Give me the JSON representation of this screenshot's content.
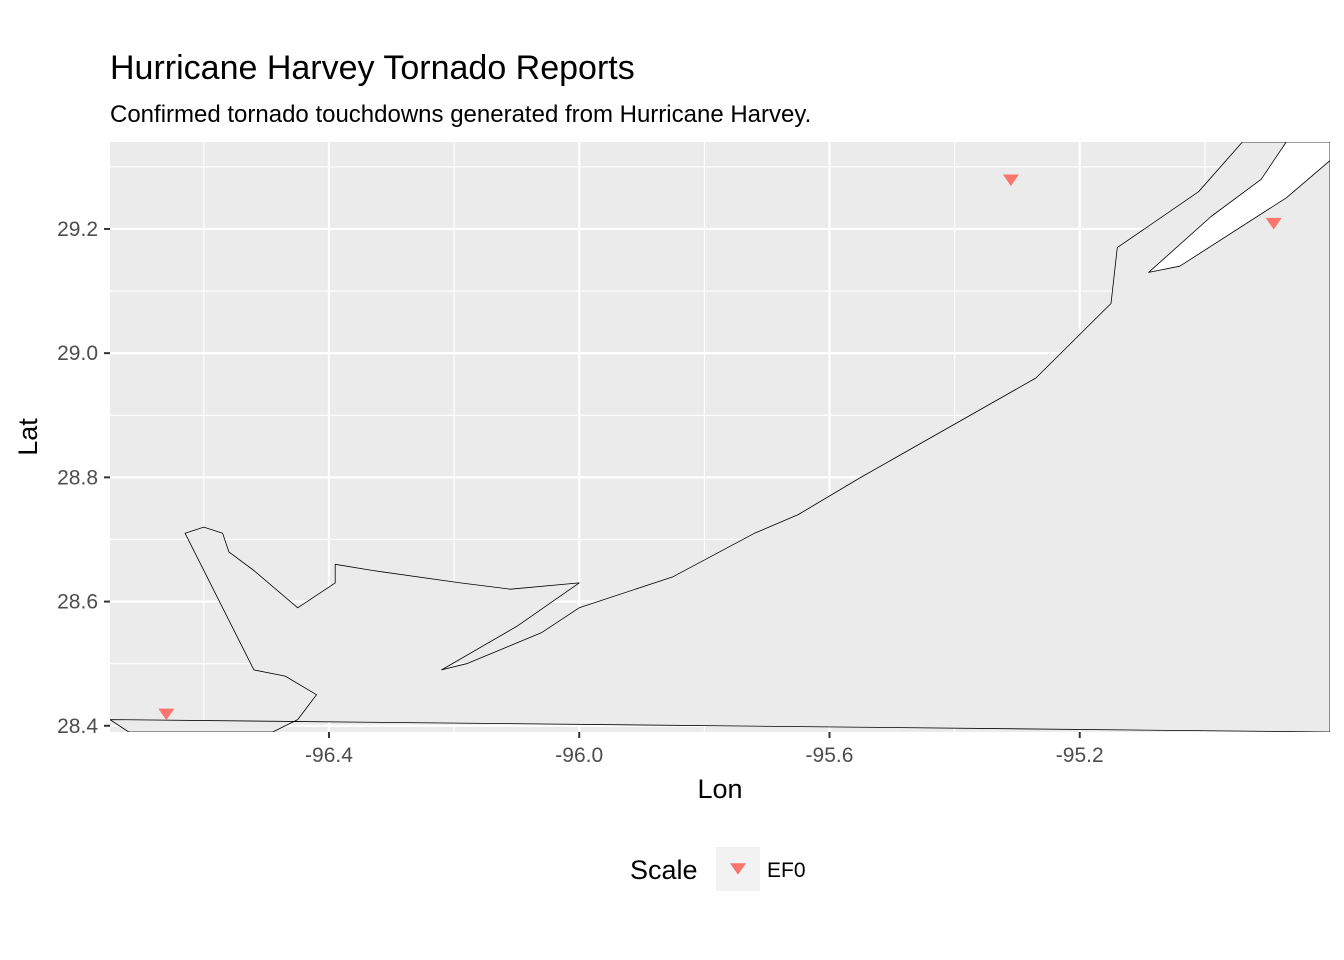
{
  "chart_data": {
    "type": "scatter",
    "title": "Hurricane Harvey Tornado Reports",
    "subtitle": "Confirmed tornado touchdowns generated from Hurricane Harvey.",
    "xlabel": "Lon",
    "ylabel": "Lat",
    "xlim": [
      -96.75,
      -94.8
    ],
    "ylim": [
      28.39,
      29.34
    ],
    "x_ticks": [
      -96.4,
      -96.0,
      -95.6,
      -95.2
    ],
    "x_tick_labels": [
      "-96.4",
      "-96.0",
      "-95.6",
      "-95.2"
    ],
    "y_ticks": [
      28.4,
      28.6,
      28.8,
      29.0,
      29.2
    ],
    "y_tick_labels": [
      "28.4",
      "28.6",
      "28.8",
      "29.0",
      "29.2"
    ],
    "grid": true,
    "panel_background": "#ebebeb",
    "legend": {
      "title": "Scale",
      "position": "bottom",
      "entries": [
        "EF0"
      ]
    },
    "series": [
      {
        "name": "EF0",
        "marker": "triangle-down",
        "color": "#f8766d",
        "points": [
          {
            "x": -96.66,
            "y": 28.42
          },
          {
            "x": -95.31,
            "y": 29.28
          },
          {
            "x": -94.89,
            "y": 29.21
          }
        ]
      }
    ],
    "coastline": [
      [
        [
          -96.75,
          28.41
        ],
        [
          -96.72,
          28.39
        ],
        [
          -96.49,
          28.39
        ],
        [
          -96.45,
          28.41
        ],
        [
          -96.42,
          28.45
        ],
        [
          -96.47,
          28.48
        ],
        [
          -96.52,
          28.49
        ],
        [
          -96.63,
          28.71
        ],
        [
          -96.6,
          28.72
        ],
        [
          -96.57,
          28.71
        ],
        [
          -96.56,
          28.68
        ],
        [
          -96.52,
          28.65
        ],
        [
          -96.45,
          28.59
        ],
        [
          -96.39,
          28.63
        ],
        [
          -96.39,
          28.66
        ],
        [
          -96.33,
          28.65
        ],
        [
          -96.19,
          28.63
        ],
        [
          -96.11,
          28.62
        ],
        [
          -96.0,
          28.63
        ],
        [
          -96.1,
          28.56
        ],
        [
          -96.22,
          28.49
        ],
        [
          -96.18,
          28.5
        ],
        [
          -96.06,
          28.55
        ],
        [
          -96.0,
          28.59
        ],
        [
          -95.85,
          28.64
        ],
        [
          -95.72,
          28.71
        ],
        [
          -95.65,
          28.74
        ],
        [
          -95.55,
          28.8
        ],
        [
          -95.27,
          28.96
        ],
        [
          -95.15,
          29.08
        ],
        [
          -95.14,
          29.17
        ],
        [
          -95.01,
          29.26
        ],
        [
          -94.94,
          29.34
        ],
        [
          -94.8,
          29.34
        ],
        [
          -94.8,
          28.39
        ]
      ],
      [
        [
          -95.09,
          29.13
        ],
        [
          -95.04,
          29.14
        ],
        [
          -94.87,
          29.25
        ],
        [
          -94.8,
          29.31
        ],
        [
          -94.8,
          29.34
        ],
        [
          -94.87,
          29.34
        ],
        [
          -94.91,
          29.28
        ],
        [
          -94.99,
          29.22
        ]
      ]
    ]
  }
}
